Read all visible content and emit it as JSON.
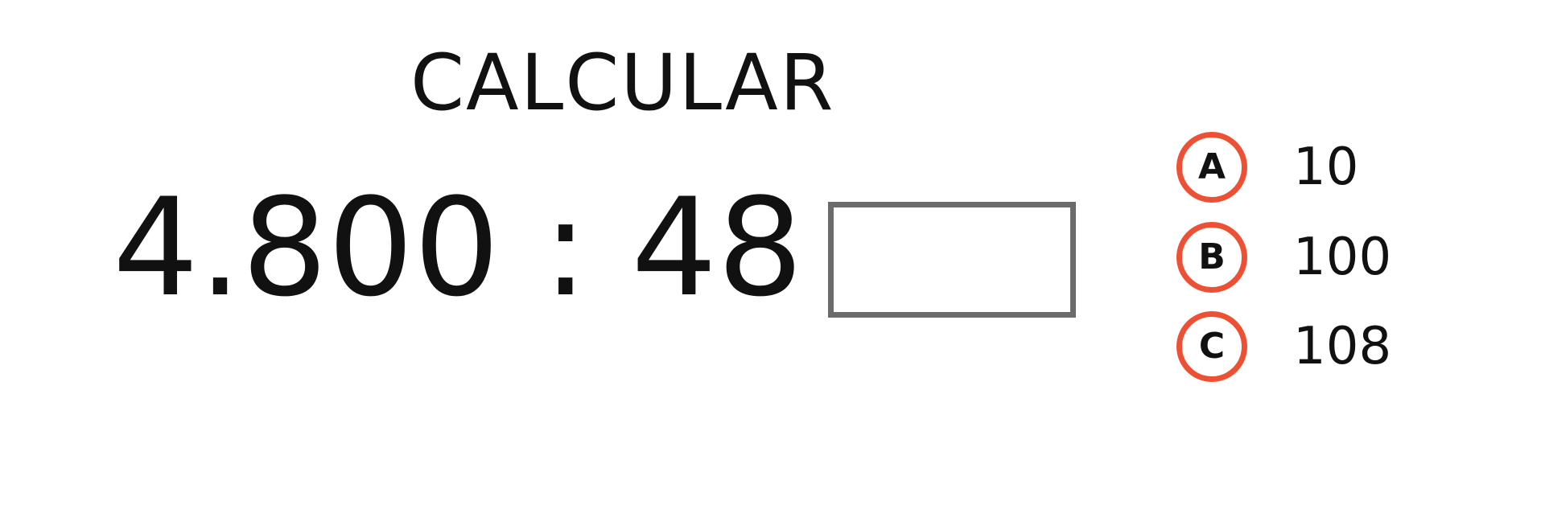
{
  "title": "CALCULAR",
  "equation": {
    "dividend": "4.800",
    "operator": ":",
    "divisor": "48",
    "equals": "="
  },
  "options": [
    {
      "letter": "A",
      "value": "10"
    },
    {
      "letter": "B",
      "value": "100"
    },
    {
      "letter": "C",
      "value": "108"
    }
  ],
  "colors": {
    "option_ring": "#ee5033",
    "box_border": "#6b6a6c",
    "text": "#111111"
  }
}
